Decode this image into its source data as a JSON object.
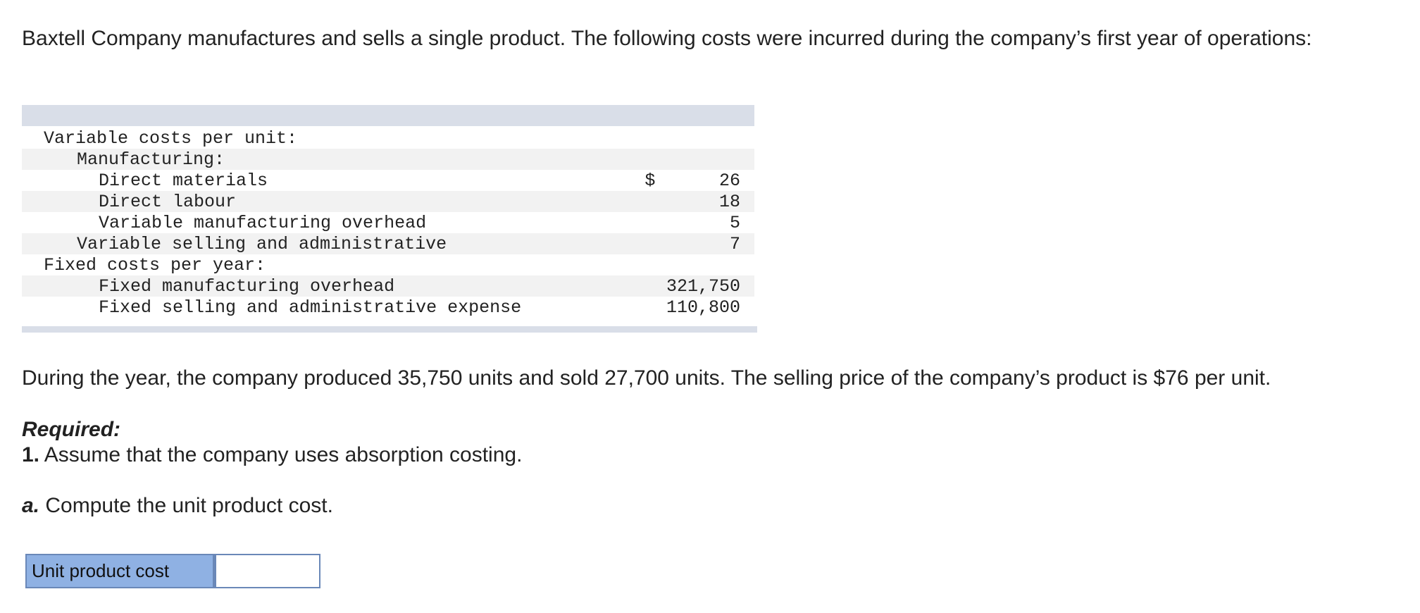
{
  "intro": "Baxtell Company manufactures and sells a single product. The following costs were incurred during the company’s first year of operations:",
  "cost_table": {
    "rows": [
      {
        "label": "Variable costs per unit:",
        "indent": 0,
        "currency": "",
        "value": ""
      },
      {
        "label": "Manufacturing:",
        "indent": 1,
        "currency": "",
        "value": ""
      },
      {
        "label": "Direct materials",
        "indent": 2,
        "currency": "$",
        "value": "26"
      },
      {
        "label": "Direct labour",
        "indent": 2,
        "currency": "",
        "value": "18"
      },
      {
        "label": "Variable manufacturing overhead",
        "indent": 2,
        "currency": "",
        "value": "5"
      },
      {
        "label": "Variable selling and administrative",
        "indent": 1,
        "currency": "",
        "value": "7"
      },
      {
        "label": "Fixed costs per year:",
        "indent": 0,
        "currency": "",
        "value": ""
      },
      {
        "label": "Fixed manufacturing overhead",
        "indent": 2,
        "currency": "",
        "value": "321,750"
      },
      {
        "label": "Fixed selling and administrative expense",
        "indent": 2,
        "currency": "",
        "value": "110,800"
      }
    ]
  },
  "production_text": "During the year, the company produced 35,750 units and sold 27,700 units. The selling price of the company’s product is $76 per unit.",
  "required_heading": "Required:",
  "req1": {
    "number": "1.",
    "text": " Assume that the company uses absorption costing."
  },
  "reqa": {
    "letter": "a.",
    "text": " Compute the unit product cost."
  },
  "answer": {
    "label": "Unit product cost",
    "value": ""
  }
}
